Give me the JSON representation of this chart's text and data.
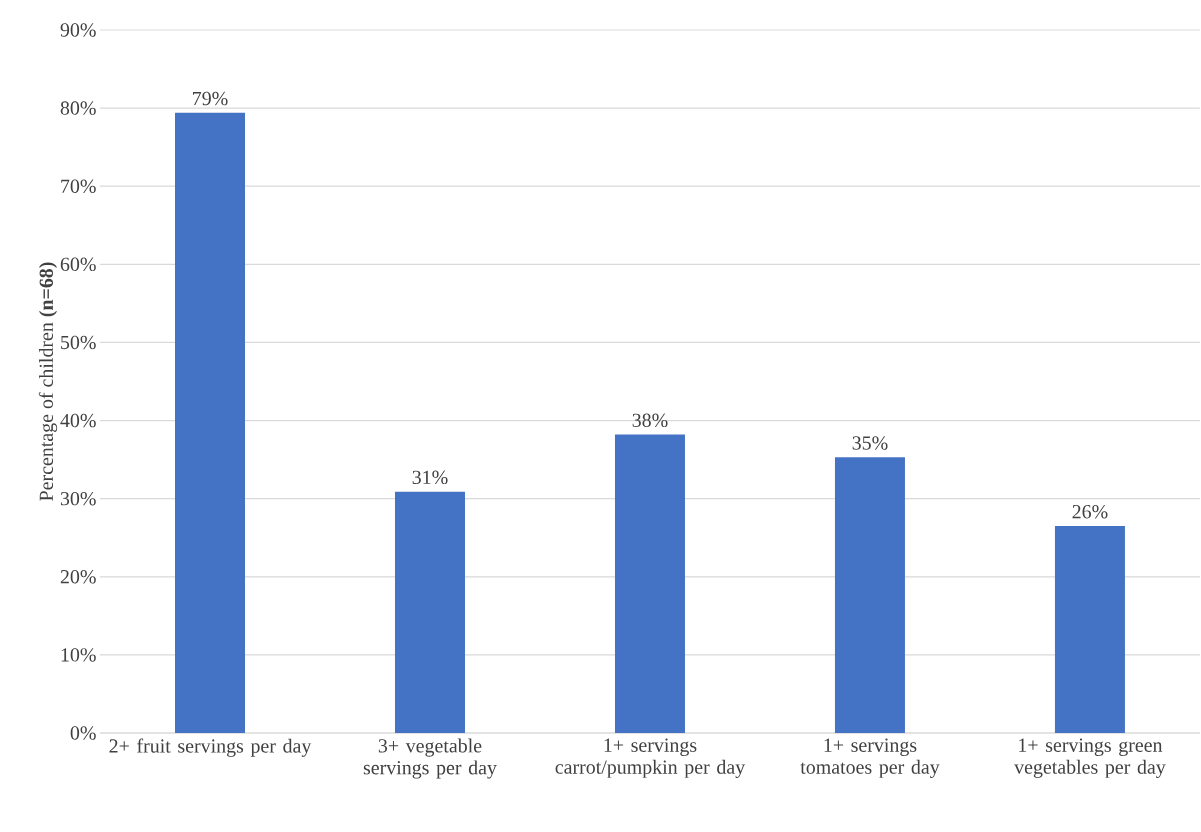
{
  "chart_data": {
    "type": "bar",
    "ylabel": "Percentage of children **(n=68)**",
    "categories": [
      "2+ fruit servings per day",
      "3+ vegetable servings per day",
      "1+ servings carrot/pumpkin per day",
      "1+ servings tomatoes per day",
      "1+ servings green vegetables per day"
    ],
    "values": [
      79.4,
      30.9,
      38.2,
      35.3,
      26.5
    ],
    "value_labels": [
      "79%",
      "31%",
      "38%",
      "35%",
      "26%"
    ],
    "color": "#4472c4",
    "ylim": [
      0,
      90
    ],
    "yticks": [
      {
        "value": 0,
        "label": "0%"
      },
      {
        "value": 10,
        "label": "10%"
      },
      {
        "value": 20,
        "label": "20%"
      },
      {
        "value": 30,
        "label": "30%"
      },
      {
        "value": 40,
        "label": "40%"
      },
      {
        "value": 50,
        "label": "50%"
      },
      {
        "value": 60,
        "label": "60%"
      },
      {
        "value": 70,
        "label": "70%"
      },
      {
        "value": 80,
        "label": "80%"
      },
      {
        "value": 90,
        "label": "90%"
      }
    ],
    "grid": "y"
  }
}
